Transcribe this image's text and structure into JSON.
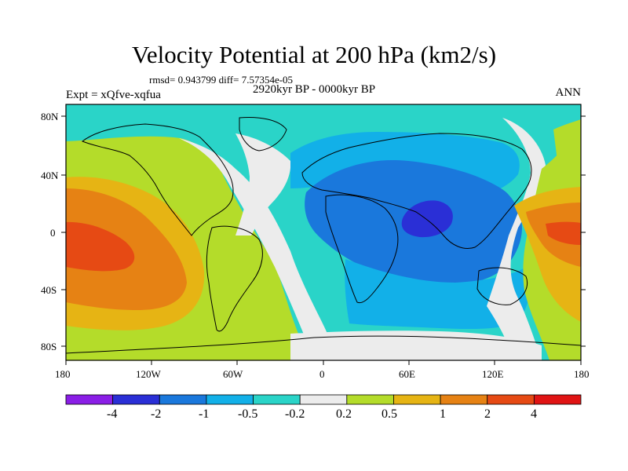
{
  "title": "Velocity Potential at 200 hPa (km2/s)",
  "stats": "rmsd= 0.943799 diff= 7.57354e-05",
  "expt": "Expt = xQfve-xqfua",
  "period": "2920kyr BP - 0000kyr BP",
  "season": "ANN",
  "lat_labels": [
    "80N",
    "40N",
    "0",
    "40S",
    "80S"
  ],
  "lon_labels": [
    "180",
    "120W",
    "60W",
    "0",
    "60E",
    "120E",
    "180"
  ],
  "colorbar": {
    "labels": [
      "-4",
      "-2",
      "-1",
      "-0.5",
      "-0.2",
      "0.2",
      "0.5",
      "1",
      "2",
      "4"
    ],
    "colors": [
      "#8a1ee6",
      "#2a2fd6",
      "#1a78dc",
      "#12b0e8",
      "#2ad4c8",
      "#ececec",
      "#b4dc2a",
      "#e6b414",
      "#e68214",
      "#e64a14",
      "#e01414"
    ]
  }
}
